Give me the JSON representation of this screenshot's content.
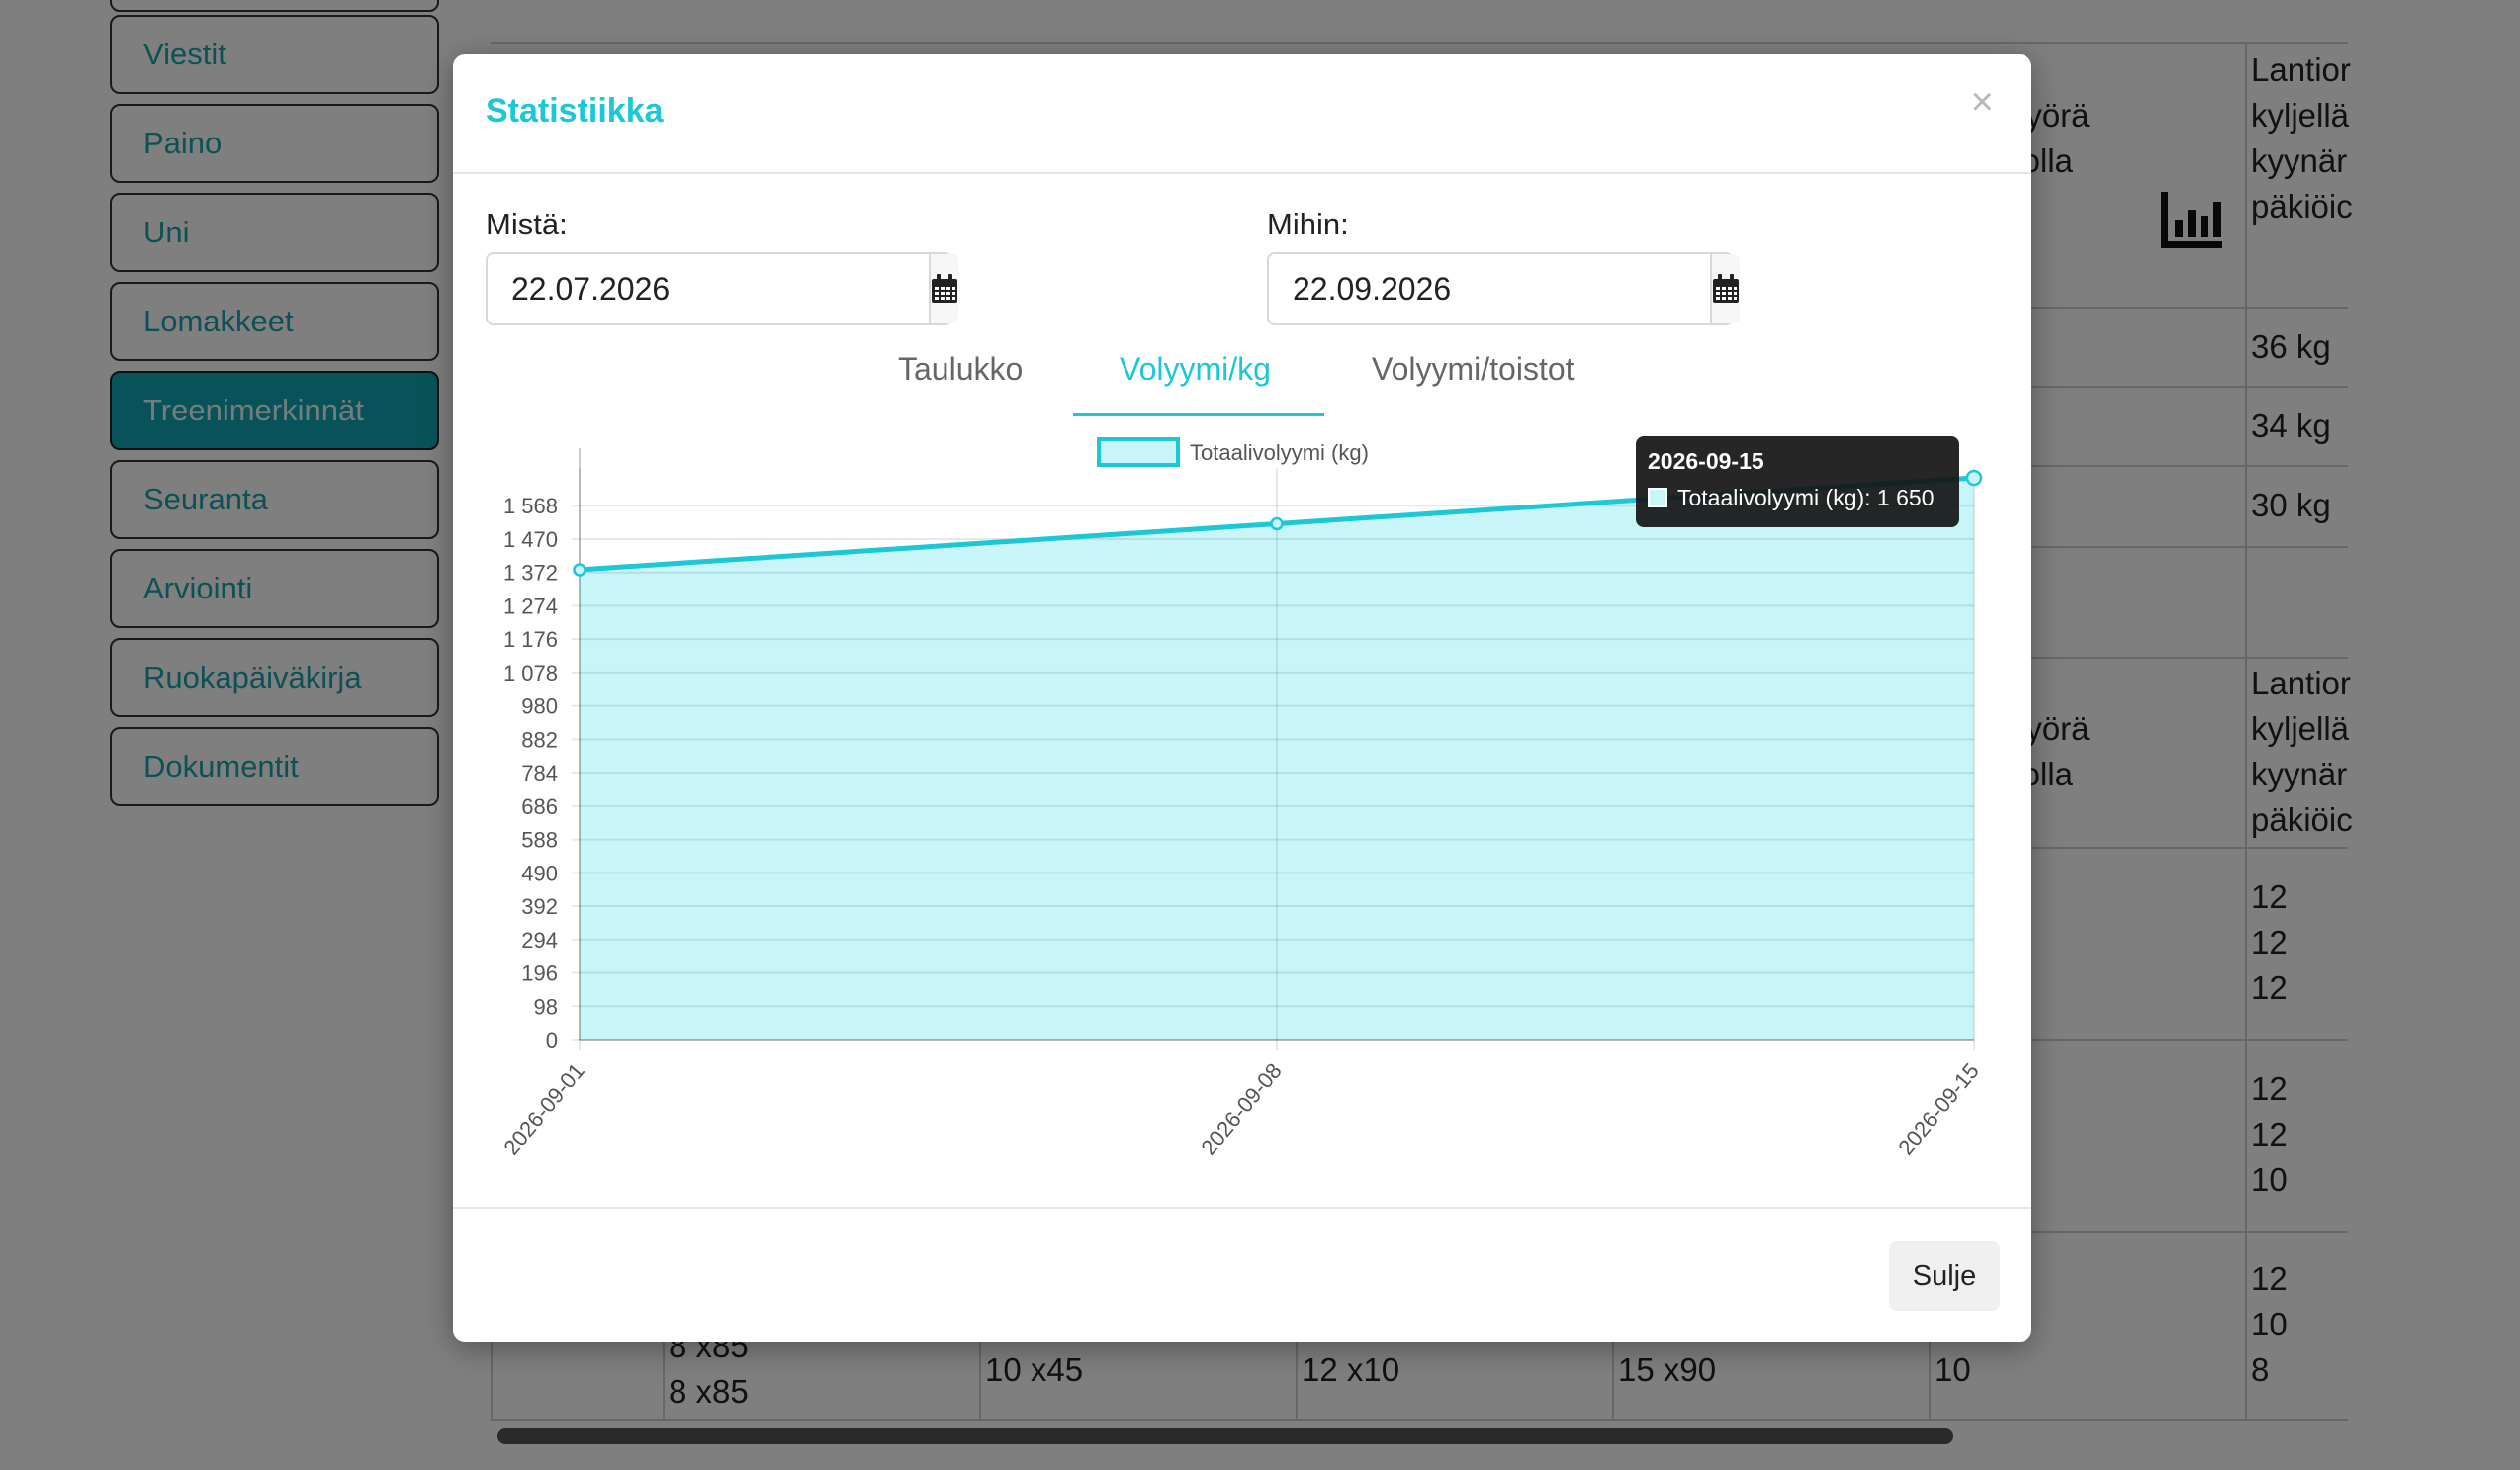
{
  "sidebar": {
    "items": [
      {
        "label": "Viestit",
        "active": false
      },
      {
        "label": "Paino",
        "active": false
      },
      {
        "label": "Uni",
        "active": false
      },
      {
        "label": "Lomakkeet",
        "active": false
      },
      {
        "label": "Treenimerkinnät",
        "active": true
      },
      {
        "label": "Seuranta",
        "active": false
      },
      {
        "label": "Arviointi",
        "active": false
      },
      {
        "label": "Ruokapäiväkirja",
        "active": false
      },
      {
        "label": "Dokumentit",
        "active": false
      }
    ]
  },
  "background_table": {
    "header1": "pyörä\nllolla",
    "header2": "Lantior\nkyljellä\nkyynär\npäkiöic",
    "weights": [
      "36 kg",
      "34 kg",
      "30 kg"
    ],
    "header3": "pyörä\nllolla",
    "header4": "Lantior\nkyljellä\nkyynär\npäkiöic",
    "reps_a": "12\n12\n12",
    "reps_b": "12\n12\n10",
    "reps_c": "12\n10\n8",
    "row_last": [
      "8 x85\n8 x85",
      "10 x45",
      "12 x10",
      "15 x90",
      "10"
    ]
  },
  "modal": {
    "title": "Statistiikka",
    "close_symbol": "×",
    "from_label": "Mistä:",
    "from_value": "22.07.2026",
    "to_label": "Mihin:",
    "to_value": "22.09.2026",
    "tabs": [
      {
        "label": "Taulukko",
        "active": false
      },
      {
        "label": "Volyymi/kg",
        "active": true
      },
      {
        "label": "Volyymi/toistot",
        "active": false
      }
    ],
    "close_button": "Sulje",
    "tooltip": {
      "title": "2026-09-15",
      "text": "Totaalivolyymi (kg): 1 650"
    }
  },
  "colors": {
    "accent": "#1dc7d6",
    "fill": "#c8f6f8",
    "active_nav": "#11a7b3"
  },
  "chart_data": {
    "type": "area",
    "x": [
      "2026-09-01",
      "2026-09-08",
      "2026-09-15"
    ],
    "series": [
      {
        "name": "Totaalivolyymi (kg)",
        "values": [
          1380,
          1515,
          1650
        ]
      }
    ],
    "yticks": [
      0,
      98,
      196,
      294,
      392,
      490,
      588,
      686,
      784,
      882,
      980,
      1078,
      1176,
      1274,
      1372,
      1470,
      1568
    ],
    "ytick_labels": [
      "0",
      "98",
      "196",
      "294",
      "392",
      "490",
      "588",
      "686",
      "784",
      "882",
      "980",
      "1 078",
      "1 176",
      "1 274",
      "1 372",
      "1 470",
      "1 568"
    ],
    "ylim": [
      0,
      1650
    ],
    "grid": true,
    "legend": "top"
  }
}
